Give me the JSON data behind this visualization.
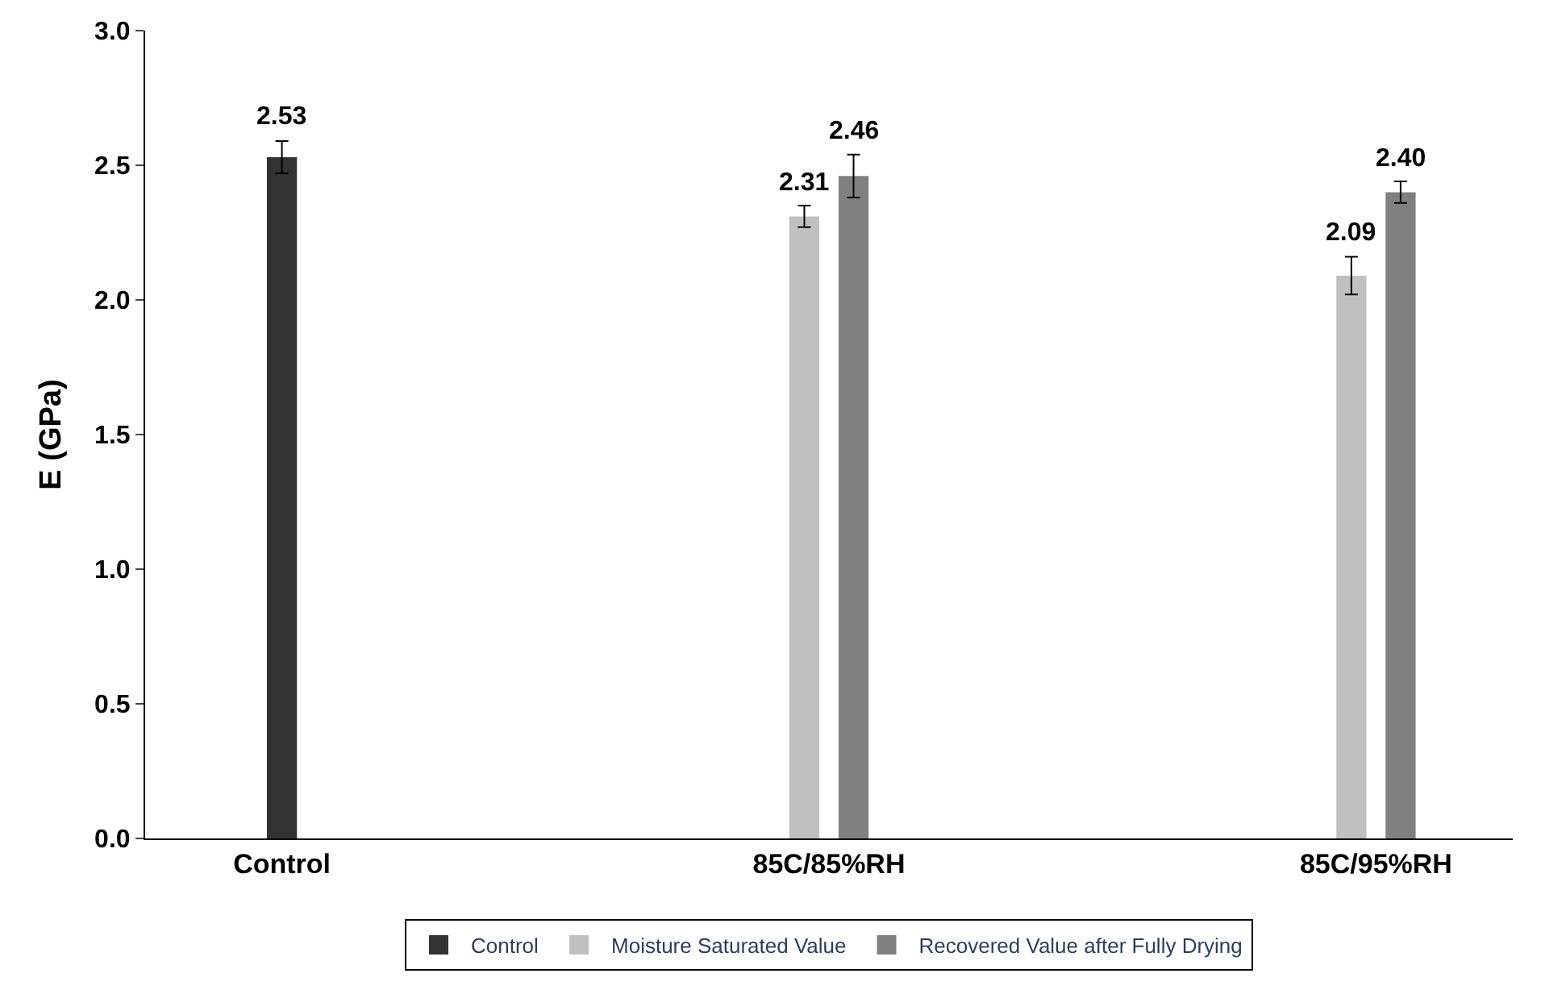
{
  "chart_data": {
    "type": "bar",
    "ylabel": "E (GPa)",
    "categories": [
      "Control",
      "85C/85%RH",
      "85C/95%RH"
    ],
    "series": [
      {
        "name": "Control",
        "color": "#333333",
        "values": [
          2.53,
          null,
          null
        ],
        "errors": [
          0.06,
          null,
          null
        ],
        "value_labels": [
          "2.53",
          null,
          null
        ]
      },
      {
        "name": "Moisture Saturated Value",
        "color": "#c0c0c0",
        "values": [
          null,
          2.31,
          2.09
        ],
        "errors": [
          null,
          0.04,
          0.07
        ],
        "value_labels": [
          null,
          "2.31",
          "2.09"
        ]
      },
      {
        "name": "Recovered Value after Fully Drying",
        "color": "#808080",
        "values": [
          null,
          2.46,
          2.4
        ],
        "errors": [
          null,
          0.08,
          0.04
        ],
        "value_labels": [
          null,
          "2.46",
          "2.40"
        ]
      }
    ],
    "ylim": [
      0,
      3
    ],
    "yticks": [
      {
        "value": 0,
        "label": "0.0"
      },
      0.5,
      {
        "value": 1,
        "label": "1.0"
      },
      1.5,
      {
        "value": 2,
        "label": "2.0"
      },
      2.5,
      {
        "value": 3,
        "label": "3.0"
      }
    ],
    "grid": false,
    "legend": "bottom"
  }
}
